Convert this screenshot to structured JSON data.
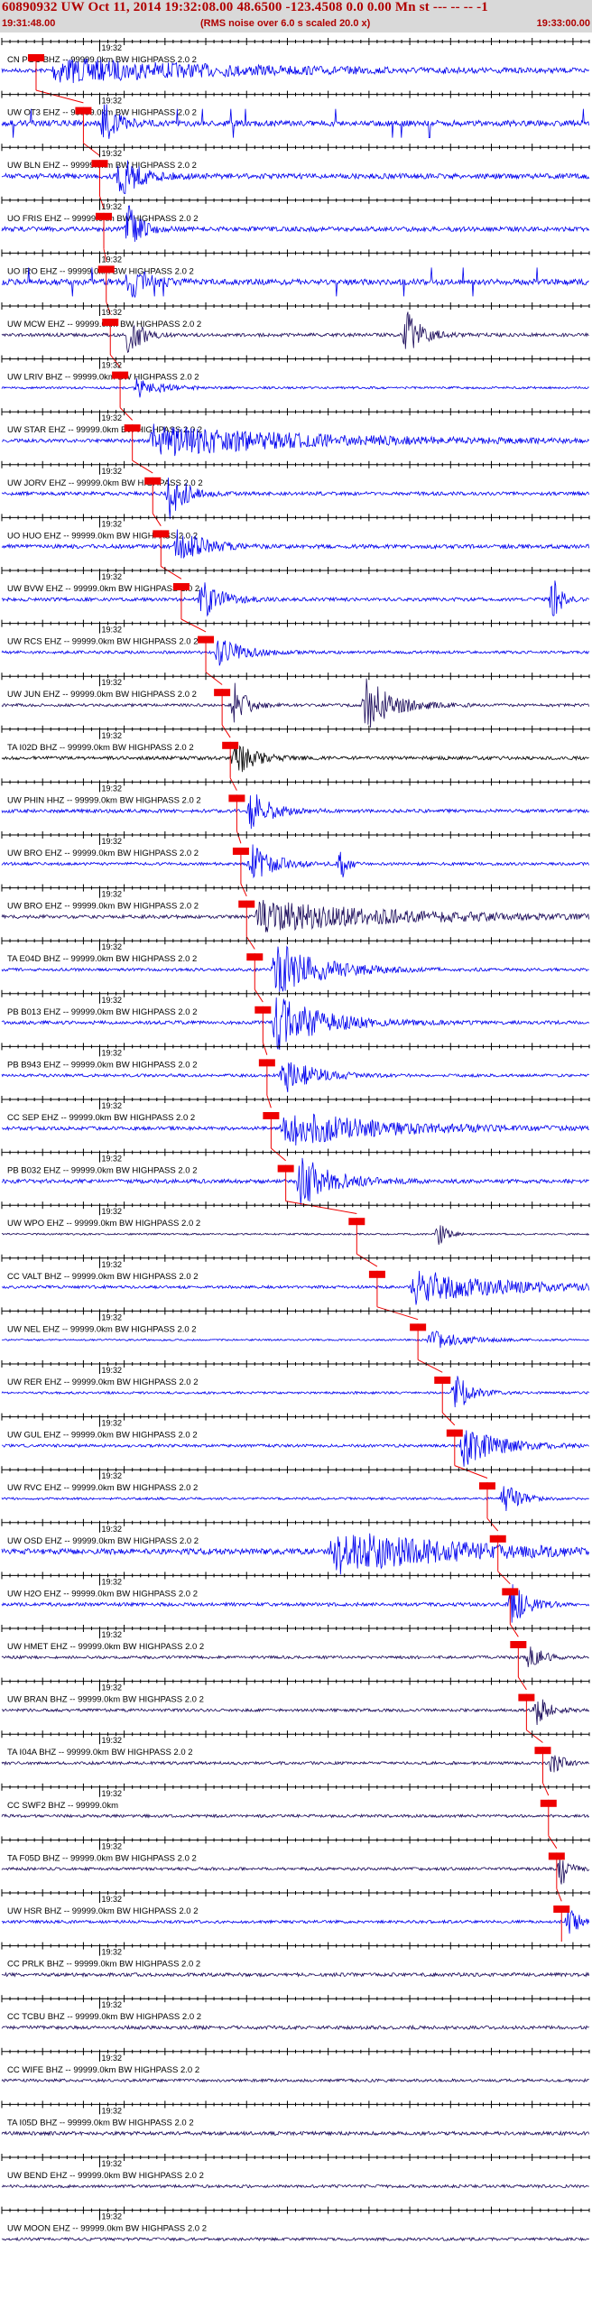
{
  "header": {
    "title": "60890932 UW Oct 11, 2014 19:32:08.00   48.6500 -123.4508  0.0 0.00 Mn st --- -- --   -1",
    "start_time": "19:31:48.00",
    "noise_note": "(RMS noise over 6.0 s scaled 20.0 x)",
    "end_time": "19:33:00.00",
    "minute_label": "19:32"
  },
  "colors": {
    "header_bg": "#d9d9d9",
    "header_text": "#b00000",
    "trace_blue": "#0000ee",
    "trace_dark": "#1a0a5a",
    "trace_black": "#000000",
    "pick": "#ee0000",
    "axis": "#000000"
  },
  "chart_data": {
    "type": "seismogram",
    "x_unit": "seconds after 19:31:48.00",
    "xlim": [
      0,
      72
    ],
    "minute_mark_seconds": 12,
    "tick_interval_seconds": 1,
    "major_tick_interval_seconds": 5,
    "stations": [
      {
        "label": "CN PGC BHZ -- 99999.0km BW  HIGHPASS  2.0  2",
        "pick_s": 4.2,
        "color": "blue",
        "amp": 0.7,
        "bursts": [
          [
            6,
            45,
            0.6
          ]
        ]
      },
      {
        "label": "UW OT3 EHZ -- 99999.0km BW  HIGHPASS  2.0  2",
        "pick_s": 10.0,
        "color": "blue",
        "amp": 1.0,
        "bursts": [
          [
            12,
            3,
            1.2
          ]
        ],
        "spikes": true
      },
      {
        "label": "UW BLN EHZ -- 99999.0km BW  HIGHPASS  2.0  2",
        "pick_s": 12.0,
        "color": "blue",
        "amp": 0.9,
        "bursts": [
          [
            14,
            5,
            1.1
          ]
        ]
      },
      {
        "label": "UO FRIS EHZ -- 99999.0km BW  HIGHPASS  2.0  2",
        "pick_s": 12.5,
        "color": "blue",
        "amp": 0.8,
        "bursts": [
          [
            15,
            3,
            1.3
          ]
        ]
      },
      {
        "label": "UO IRO EHZ -- 99999.0km BW  HIGHPASS  2.0  2",
        "pick_s": 12.8,
        "color": "blue",
        "amp": 1.0,
        "bursts": [
          [
            15,
            4,
            1.2
          ]
        ],
        "spikes": true
      },
      {
        "label": "UW MCW EHZ -- 99999.0km BW  HIGHPASS  2.0  2",
        "pick_s": 13.3,
        "color": "dark",
        "amp": 0.6,
        "bursts": [
          [
            15,
            3,
            1.3
          ],
          [
            49,
            4,
            1.2
          ]
        ]
      },
      {
        "label": "UW LRIV BHZ -- 99999.0km BW  HIGHPASS  2.0  2",
        "pick_s": 14.5,
        "color": "blue",
        "amp": 0.4,
        "bursts": [
          [
            16,
            6,
            0.5
          ]
        ]
      },
      {
        "label": "UW STAR EHZ -- 99999.0km BW  HIGHPASS  2.0  2",
        "pick_s": 16.0,
        "color": "blue",
        "amp": 0.6,
        "bursts": [
          [
            18,
            40,
            0.8
          ]
        ]
      },
      {
        "label": "UW JORV EHZ -- 99999.0km BW  HIGHPASS  2.0  2",
        "pick_s": 18.5,
        "color": "blue",
        "amp": 0.6,
        "bursts": [
          [
            20,
            4,
            1.3
          ]
        ]
      },
      {
        "label": "UO HUO EHZ -- 99999.0km BW  HIGHPASS  2.0  2",
        "pick_s": 19.5,
        "color": "blue",
        "amp": 0.7,
        "bursts": [
          [
            21,
            6,
            1.0
          ]
        ]
      },
      {
        "label": "UW BVW EHZ -- 99999.0km BW  HIGHPASS  2.0  2",
        "pick_s": 22.0,
        "color": "blue",
        "amp": 0.6,
        "bursts": [
          [
            24,
            5,
            1.0
          ],
          [
            67,
            2,
            1.2
          ]
        ]
      },
      {
        "label": "UW RCS EHZ -- 99999.0km BW  HIGHPASS  2.0  2",
        "pick_s": 25.0,
        "color": "blue",
        "amp": 0.5,
        "bursts": [
          [
            26,
            6,
            0.8
          ]
        ]
      },
      {
        "label": "UW JUN EHZ -- 99999.0km BW  HIGHPASS  2.0  2",
        "pick_s": 27.0,
        "color": "dark",
        "amp": 0.5,
        "bursts": [
          [
            28,
            3,
            1.2
          ],
          [
            44,
            7,
            1.4
          ]
        ]
      },
      {
        "label": "TA I02D BHZ -- 99999.0km BW  HIGHPASS  2.0  2",
        "pick_s": 28.0,
        "color": "black",
        "amp": 0.6,
        "bursts": [
          [
            28,
            5,
            0.9
          ]
        ]
      },
      {
        "label": "UW PHIN HHZ -- 99999.0km BW  HIGHPASS  2.0  2",
        "pick_s": 28.8,
        "color": "blue",
        "amp": 0.6,
        "bursts": [
          [
            30,
            5,
            1.0
          ]
        ]
      },
      {
        "label": "UW BRO EHZ -- 99999.0km BW  HIGHPASS  2.0  2",
        "pick_s": 29.3,
        "color": "blue",
        "amp": 0.5,
        "bursts": [
          [
            30,
            6,
            1.0
          ],
          [
            41,
            1,
            0.8
          ]
        ]
      },
      {
        "label": "UW BRO EHZ -- 99999.0km BW  HIGHPASS  2.0  2",
        "pick_s": 30.0,
        "color": "dark",
        "amp": 0.6,
        "bursts": [
          [
            31,
            35,
            0.8
          ]
        ]
      },
      {
        "label": "TA E04D BHZ -- 99999.0km BW  HIGHPASS  2.0  2",
        "pick_s": 31.0,
        "color": "blue",
        "amp": 0.5,
        "bursts": [
          [
            33,
            12,
            1.4
          ]
        ]
      },
      {
        "label": "PB B013 EHZ -- 99999.0km BW  HIGHPASS  2.0  2",
        "pick_s": 32.0,
        "color": "blue",
        "amp": 0.6,
        "bursts": [
          [
            33,
            12,
            1.4
          ]
        ]
      },
      {
        "label": "PB B943 EHZ -- 99999.0km BW  HIGHPASS  2.0  2",
        "pick_s": 32.5,
        "color": "blue",
        "amp": 0.5,
        "bursts": [
          [
            34,
            8,
            0.9
          ]
        ]
      },
      {
        "label": "CC SEP EHZ -- 99999.0km BW  HIGHPASS  2.0  2",
        "pick_s": 33.0,
        "color": "blue",
        "amp": 0.6,
        "bursts": [
          [
            34,
            25,
            0.9
          ]
        ]
      },
      {
        "label": "PB B032 EHZ -- 99999.0km BW  HIGHPASS  2.0  2",
        "pick_s": 34.8,
        "color": "blue",
        "amp": 0.7,
        "bursts": [
          [
            36,
            8,
            1.3
          ]
        ]
      },
      {
        "label": "UW WPO EHZ -- 99999.0km BW  HIGHPASS  2.0  2",
        "pick_s": 43.5,
        "color": "dark",
        "amp": 0.3,
        "bursts": [
          [
            53,
            2,
            0.6
          ]
        ]
      },
      {
        "label": "CC VALT BHZ -- 99999.0km BW  HIGHPASS  2.0  2",
        "pick_s": 46.0,
        "color": "blue",
        "amp": 0.5,
        "bursts": [
          [
            50,
            22,
            0.9
          ]
        ]
      },
      {
        "label": "UW NEL EHZ -- 99999.0km BW  HIGHPASS  2.0  2",
        "pick_s": 51.0,
        "color": "blue",
        "amp": 0.3,
        "bursts": [
          [
            52,
            8,
            0.5
          ]
        ]
      },
      {
        "label": "UW RER EHZ -- 99999.0km BW  HIGHPASS  2.0  2",
        "pick_s": 54.0,
        "color": "blue",
        "amp": 0.4,
        "bursts": [
          [
            55,
            4,
            1.0
          ]
        ]
      },
      {
        "label": "UW GUL EHZ -- 99999.0km BW  HIGHPASS  2.0  2",
        "pick_s": 55.5,
        "color": "blue",
        "amp": 0.5,
        "bursts": [
          [
            56,
            10,
            1.0
          ]
        ]
      },
      {
        "label": "UW RVC EHZ -- 99999.0km BW  HIGHPASS  2.0  2",
        "pick_s": 59.5,
        "color": "blue",
        "amp": 0.4,
        "bursts": [
          [
            61,
            4,
            0.8
          ]
        ]
      },
      {
        "label": "UW OSD EHZ -- 99999.0km BW  HIGHPASS  2.0  2",
        "pick_s": 60.8,
        "color": "blue",
        "amp": 1.0,
        "bursts": [
          [
            40,
            30,
            1.1
          ]
        ]
      },
      {
        "label": "UW H2O EHZ -- 99999.0km BW  HIGHPASS  2.0  2",
        "pick_s": 62.3,
        "color": "blue",
        "amp": 0.6,
        "bursts": [
          [
            62,
            4,
            1.1
          ]
        ]
      },
      {
        "label": "UW HMET EHZ -- 99999.0km BW  HIGHPASS  2.0  2",
        "pick_s": 63.3,
        "color": "dark",
        "amp": 0.5,
        "bursts": [
          [
            64,
            3,
            0.8
          ]
        ]
      },
      {
        "label": "UW BRAN BHZ -- 99999.0km BW  HIGHPASS  2.0  2",
        "pick_s": 64.3,
        "color": "dark",
        "amp": 0.5,
        "bursts": [
          [
            65,
            3,
            0.8
          ]
        ]
      },
      {
        "label": "TA I04A BHZ -- 99999.0km BW  HIGHPASS  2.0  2",
        "pick_s": 66.3,
        "color": "dark",
        "amp": 0.5,
        "bursts": [
          [
            67,
            2,
            0.9
          ]
        ]
      },
      {
        "label": "CC SWF2 BHZ -- 99999.0km",
        "pick_s": 67.0,
        "color": "dark",
        "amp": 0.5,
        "bursts": []
      },
      {
        "label": "TA F05D BHZ -- 99999.0km BW  HIGHPASS  2.0  2",
        "pick_s": 68.0,
        "color": "dark",
        "amp": 0.5,
        "bursts": [
          [
            68,
            2,
            0.9
          ]
        ]
      },
      {
        "label": "UW HSR BHZ -- 99999.0km BW  HIGHPASS  2.0  2",
        "pick_s": 68.6,
        "color": "blue",
        "amp": 0.5,
        "bursts": [
          [
            69,
            2,
            1.0
          ]
        ]
      },
      {
        "label": "CC PRLK BHZ -- 99999.0km BW  HIGHPASS  2.0  2",
        "pick_s": null,
        "color": "dark",
        "amp": 0.6,
        "bursts": []
      },
      {
        "label": "CC TCBU BHZ -- 99999.0km BW  HIGHPASS  2.0  2",
        "pick_s": null,
        "color": "dark",
        "amp": 0.6,
        "bursts": []
      },
      {
        "label": "CC WIFE BHZ -- 99999.0km BW  HIGHPASS  2.0  2",
        "pick_s": null,
        "color": "dark",
        "amp": 0.5,
        "bursts": []
      },
      {
        "label": "TA I05D BHZ -- 99999.0km BW  HIGHPASS  2.0  2",
        "pick_s": null,
        "color": "dark",
        "amp": 0.6,
        "bursts": []
      },
      {
        "label": "UW BEND EHZ -- 99999.0km BW  HIGHPASS  2.0  2",
        "pick_s": null,
        "color": "dark",
        "amp": 0.5,
        "bursts": []
      },
      {
        "label": "UW MOON EHZ -- 99999.0km BW  HIGHPASS  2.0  2",
        "pick_s": null,
        "color": "dark",
        "amp": 0.5,
        "bursts": []
      }
    ]
  }
}
